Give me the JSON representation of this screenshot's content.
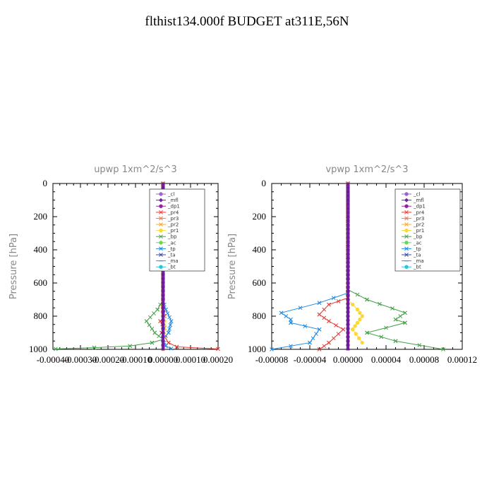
{
  "title": "flthist134.000f  BUDGET at311E,56N",
  "legend_items": [
    {
      "name": "_cl",
      "color": "#9966cc",
      "marker": "circle"
    },
    {
      "name": "_mfl",
      "color": "#7b1fa2",
      "marker": "diamond"
    },
    {
      "name": "_dp1",
      "color": "#8e24aa",
      "marker": "circle"
    },
    {
      "name": "_pr4",
      "color": "#e53935",
      "marker": "x"
    },
    {
      "name": "_pr3",
      "color": "#ff7043",
      "marker": "x"
    },
    {
      "name": "_pr2",
      "color": "#ffa726",
      "marker": "x"
    },
    {
      "name": "_pr1",
      "color": "#fdd835",
      "marker": "circle"
    },
    {
      "name": "_bp",
      "color": "#43a047",
      "marker": "x"
    },
    {
      "name": "_ac",
      "color": "#66dd44",
      "marker": "circle"
    },
    {
      "name": "_tp",
      "color": "#1e88e5",
      "marker": "x"
    },
    {
      "name": "_ta",
      "color": "#3949ab",
      "marker": "x"
    },
    {
      "name": "_ma",
      "color": "#2196f3",
      "marker": "dash"
    },
    {
      "name": "_bt",
      "color": "#26c6da",
      "marker": "circle"
    }
  ],
  "chart_data": [
    {
      "type": "line",
      "title": "upwp   1xm^2/s^3",
      "ylabel": "Pressure [hPa]",
      "ylim": [
        1000,
        0
      ],
      "xlim": [
        -0.0004,
        0.0002
      ],
      "xticks": [
        "-0.00040",
        "-0.00030",
        "-0.00020",
        "-0.00010",
        "0.00000",
        "0.00010",
        "0.00020"
      ],
      "xtick_values": [
        -0.0004,
        -0.0003,
        -0.0002,
        -0.0001,
        0.0,
        0.0001,
        0.0002
      ],
      "yticks": [
        0,
        200,
        400,
        600,
        800,
        1000
      ],
      "grid": false,
      "legend_position": "top-right",
      "series": [
        {
          "name": "_bp",
          "color": "#43a047",
          "x": [
            0,
            0,
            -2e-05,
            -6e-05,
            -3e-05,
            0,
            -4e-05,
            -0.00012,
            -0.00025,
            -0.00039
          ],
          "y": [
            0,
            700,
            760,
            830,
            900,
            940,
            960,
            980,
            990,
            998
          ]
        },
        {
          "name": "_tp",
          "color": "#1e88e5",
          "x": [
            0,
            0,
            1e-05,
            3e-05,
            2e-05,
            0,
            1e-05,
            3e-05
          ],
          "y": [
            0,
            700,
            760,
            830,
            900,
            940,
            980,
            995
          ]
        },
        {
          "name": "_pr4",
          "color": "#e53935",
          "x": [
            0,
            0,
            5e-06,
            -1e-05,
            5e-06,
            -5e-06,
            2e-05,
            5e-05,
            0.0002
          ],
          "y": [
            0,
            760,
            800,
            830,
            870,
            900,
            960,
            985,
            998
          ]
        },
        {
          "name": "_pr1",
          "color": "#fdd835",
          "x": [
            0,
            0,
            5e-06,
            4e-06,
            0
          ],
          "y": [
            0,
            780,
            830,
            880,
            1000
          ]
        },
        {
          "name": "_mfl",
          "color": "#7b1fa2",
          "x": [
            0,
            0
          ],
          "y": [
            0,
            1000
          ]
        }
      ]
    },
    {
      "type": "line",
      "title": "vpwp   1xm^2/s^3",
      "ylabel": "Pressure [hPa]",
      "ylim": [
        1000,
        0
      ],
      "xlim": [
        -8e-05,
        0.00012
      ],
      "xticks": [
        "-0.00008",
        "-0.00004",
        "0.00000",
        "0.00004",
        "0.00008",
        "0.00012"
      ],
      "xtick_values": [
        -8e-05,
        -4e-05,
        0.0,
        4e-05,
        8e-05,
        0.00012
      ],
      "yticks": [
        0,
        200,
        400,
        600,
        800,
        1000
      ],
      "grid": false,
      "legend_position": "top-right",
      "series": [
        {
          "name": "_bp",
          "color": "#43a047",
          "x": [
            0,
            0,
            2e-05,
            6e-05,
            5e-05,
            6e-05,
            2e-05,
            5e-05,
            0.0001
          ],
          "y": [
            0,
            640,
            700,
            780,
            820,
            840,
            900,
            950,
            1000
          ]
        },
        {
          "name": "_tp",
          "color": "#1e88e5",
          "x": [
            0,
            0,
            -3e-05,
            -7e-05,
            -6e-05,
            -6e-05,
            -3e-05,
            -4e-05,
            -8e-05
          ],
          "y": [
            0,
            660,
            720,
            780,
            820,
            840,
            880,
            960,
            1000
          ]
        },
        {
          "name": "_pr4",
          "color": "#e53935",
          "x": [
            0,
            0,
            -2e-05,
            -3e-05,
            -2e-05,
            -5e-06,
            -2e-05,
            -3e-05
          ],
          "y": [
            0,
            690,
            730,
            790,
            830,
            880,
            960,
            1000
          ]
        },
        {
          "name": "_pr1",
          "color": "#fdd835",
          "x": [
            0,
            0,
            1e-05,
            1.5e-05,
            1e-05,
            5e-06,
            1.5e-05
          ],
          "y": [
            0,
            700,
            760,
            800,
            840,
            880,
            960
          ]
        },
        {
          "name": "_mfl",
          "color": "#7b1fa2",
          "x": [
            0,
            0
          ],
          "y": [
            0,
            1000
          ]
        }
      ]
    }
  ]
}
